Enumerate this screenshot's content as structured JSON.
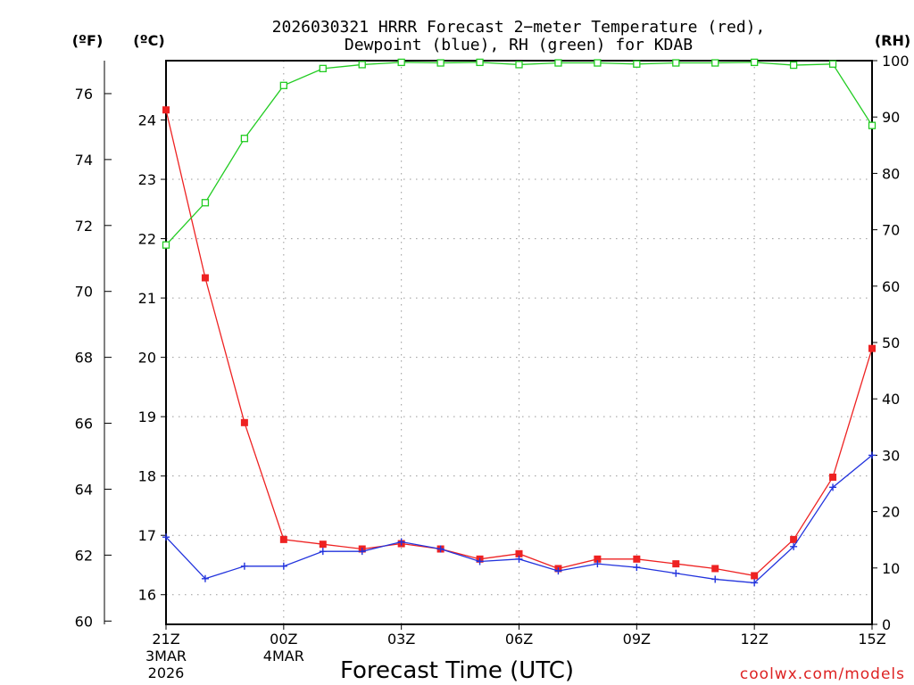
{
  "chart_data": {
    "type": "line",
    "title_line1": "2026030321 HRRR Forecast 2−meter Temperature (red),",
    "title_line2": "Dewpoint (blue), RH (green) for KDAB",
    "xlabel": "Forecast Time (UTC)",
    "unit_labels": {
      "fahrenheit": "(ºF)",
      "celsius": "(ºC)",
      "rh": "(RH)"
    },
    "x_hours": [
      0,
      1,
      2,
      3,
      4,
      5,
      6,
      7,
      8,
      9,
      10,
      11,
      12,
      13,
      14,
      15,
      16,
      17,
      18
    ],
    "x_ticks": [
      {
        "hour": 0,
        "label": "21Z",
        "date1": "3MAR",
        "date2": "2026"
      },
      {
        "hour": 3,
        "label": "00Z",
        "date1": "4MAR",
        "date2": ""
      },
      {
        "hour": 6,
        "label": "03Z",
        "date1": "",
        "date2": ""
      },
      {
        "hour": 9,
        "label": "06Z",
        "date1": "",
        "date2": ""
      },
      {
        "hour": 12,
        "label": "09Z",
        "date1": "",
        "date2": ""
      },
      {
        "hour": 15,
        "label": "12Z",
        "date1": "",
        "date2": ""
      },
      {
        "hour": 18,
        "label": "15Z",
        "date1": "",
        "date2": ""
      }
    ],
    "celsius_range": [
      15.5,
      25.0
    ],
    "celsius_ticks": [
      16,
      17,
      18,
      19,
      20,
      21,
      22,
      23,
      24
    ],
    "fahrenheit_ticks": [
      60,
      62,
      64,
      66,
      68,
      70,
      72,
      74,
      76
    ],
    "rh_range": [
      0,
      100
    ],
    "rh_ticks": [
      0,
      10,
      20,
      30,
      40,
      50,
      60,
      70,
      80,
      90,
      100
    ],
    "series": [
      {
        "name": "Temperature",
        "unit": "C",
        "color": "#ee2222",
        "marker": "filled-square",
        "values": [
          24.17,
          21.34,
          18.9,
          16.93,
          16.85,
          16.77,
          16.86,
          16.77,
          16.6,
          16.69,
          16.44,
          16.6,
          16.6,
          16.52,
          16.44,
          16.32,
          16.93,
          17.98,
          20.15
        ]
      },
      {
        "name": "Dewpoint",
        "unit": "C",
        "color": "#2233dd",
        "marker": "plus",
        "values": [
          16.97,
          16.27,
          16.48,
          16.48,
          16.73,
          16.73,
          16.89,
          16.77,
          16.56,
          16.6,
          16.4,
          16.52,
          16.46,
          16.36,
          16.26,
          16.2,
          16.81,
          17.81,
          18.35
        ]
      },
      {
        "name": "RH",
        "unit": "%",
        "color": "#22cc22",
        "marker": "open-square",
        "values": [
          67.3,
          74.8,
          86.2,
          95.6,
          98.6,
          99.3,
          99.7,
          99.6,
          99.7,
          99.3,
          99.6,
          99.6,
          99.4,
          99.6,
          99.6,
          99.7,
          99.2,
          99.4,
          88.5
        ]
      }
    ],
    "grid": true,
    "watermark": "coolwx.com/models"
  }
}
